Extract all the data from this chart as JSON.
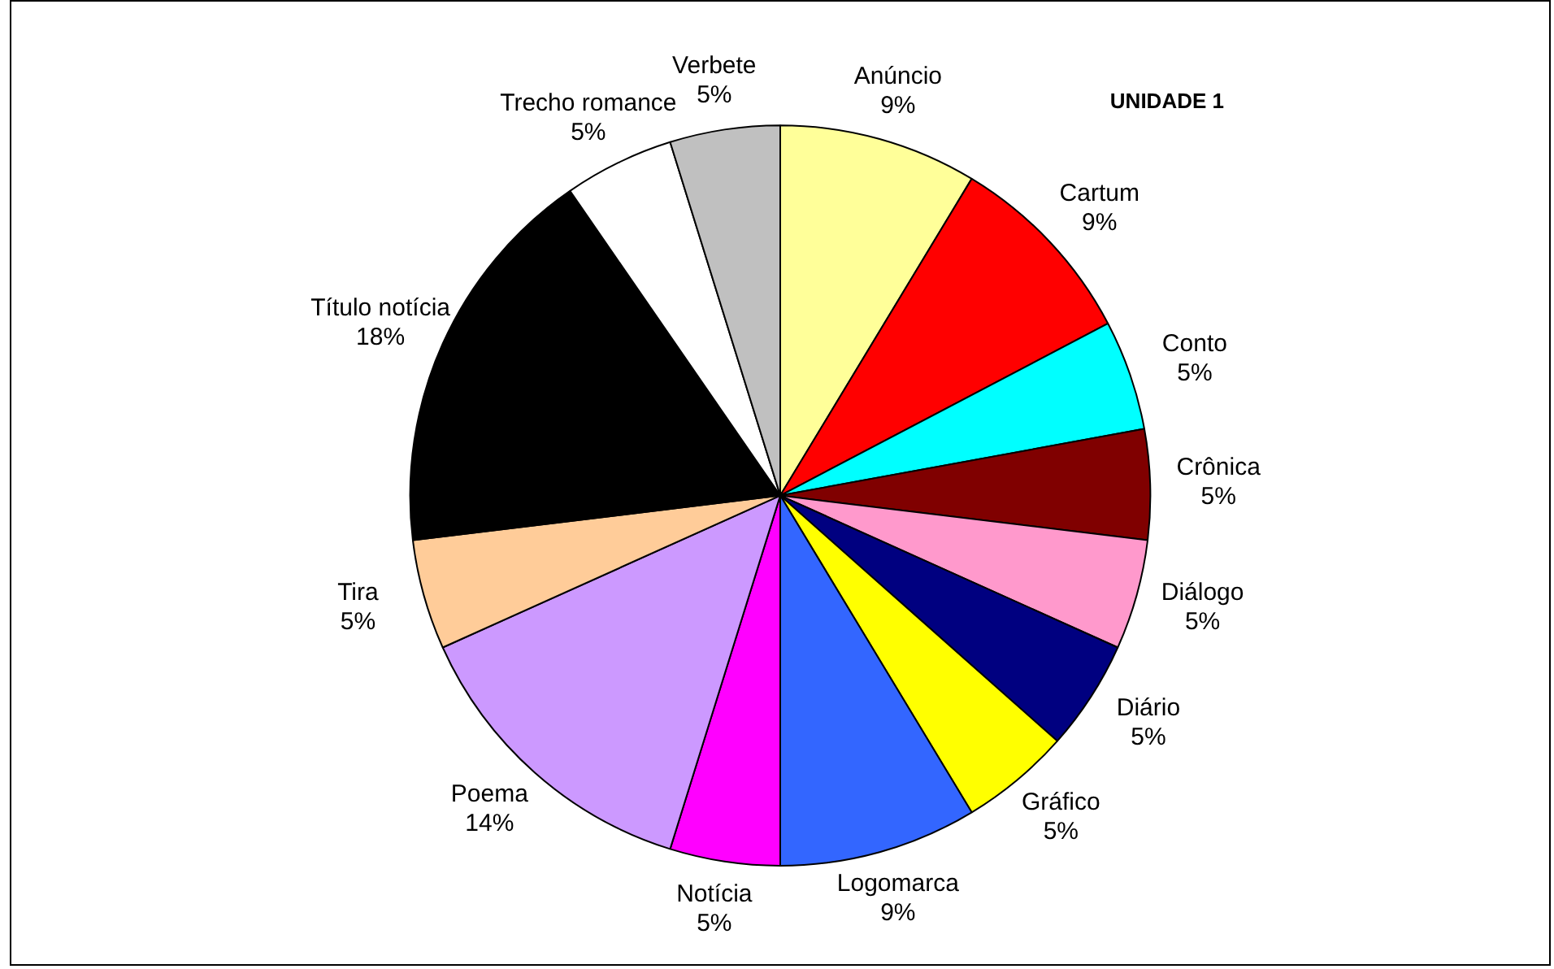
{
  "chart_data": {
    "type": "pie",
    "title": "UNIDADE 1",
    "categories": [
      "Anúncio",
      "Cartum",
      "Conto",
      "Crônica",
      "Diálogo",
      "Diário",
      "Gráfico",
      "Logomarca",
      "Notícia",
      "Poema",
      "Tira",
      "Título notícia",
      "Trecho romance",
      "Verbete"
    ],
    "values": [
      9,
      9,
      5,
      5,
      5,
      5,
      5,
      9,
      5,
      14,
      5,
      18,
      5,
      5
    ],
    "value_labels": [
      "9%",
      "9%",
      "5%",
      "5%",
      "5%",
      "5%",
      "5%",
      "9%",
      "5%",
      "14%",
      "5%",
      "18%",
      "5%",
      "5%"
    ],
    "colors": [
      "#ffff99",
      "#ff0000",
      "#00ffff",
      "#800000",
      "#ff99cc",
      "#000080",
      "#ffff00",
      "#3366ff",
      "#ff00ff",
      "#cc99ff",
      "#ffcc99",
      "#000000",
      "#ffffff",
      "#c0c0c0"
    ],
    "legend": false
  }
}
